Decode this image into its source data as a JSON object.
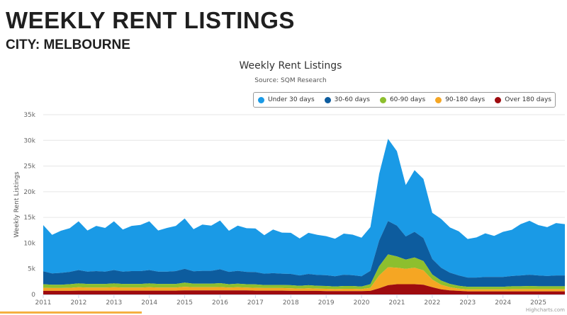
{
  "page": {
    "title": "WEEKLY RENT LISTINGS",
    "subtitle": "CITY: MELBOURNE"
  },
  "chart_data": {
    "type": "area",
    "stacked": true,
    "title": "Weekly Rent Listings",
    "subtitle": "Source: SQM Research",
    "ylabel": "Weekly Rent Listings",
    "xlabel": "",
    "ylim": [
      0,
      35000
    ],
    "y_ticks": [
      "0",
      "5k",
      "10k",
      "15k",
      "20k",
      "25k",
      "30k",
      "35k"
    ],
    "x_ticks": [
      "2011",
      "2012",
      "2013",
      "2014",
      "2015",
      "2016",
      "2017",
      "2018",
      "2019",
      "2020",
      "2021",
      "2022",
      "2023",
      "2024",
      "2025"
    ],
    "grid": true,
    "legend_position": "top-right",
    "credit": "Highcharts.com",
    "x": [
      "2011-01",
      "2011-04",
      "2011-07",
      "2011-10",
      "2012-01",
      "2012-04",
      "2012-07",
      "2012-10",
      "2013-01",
      "2013-04",
      "2013-07",
      "2013-10",
      "2014-01",
      "2014-04",
      "2014-07",
      "2014-10",
      "2015-01",
      "2015-04",
      "2015-07",
      "2015-10",
      "2016-01",
      "2016-04",
      "2016-07",
      "2016-10",
      "2017-01",
      "2017-04",
      "2017-07",
      "2017-10",
      "2018-01",
      "2018-04",
      "2018-07",
      "2018-10",
      "2019-01",
      "2019-04",
      "2019-07",
      "2019-10",
      "2020-01",
      "2020-04",
      "2020-07",
      "2020-10",
      "2021-01",
      "2021-04",
      "2021-07",
      "2021-10",
      "2022-01",
      "2022-04",
      "2022-07",
      "2022-10",
      "2023-01",
      "2023-04",
      "2023-07",
      "2023-10",
      "2024-01",
      "2024-04",
      "2024-07",
      "2024-10",
      "2025-01",
      "2025-04",
      "2025-07",
      "2025-10"
    ],
    "series": [
      {
        "name": "Under 30 days",
        "color": "#1a9ae6",
        "values": [
          9000,
          7500,
          8200,
          8500,
          9500,
          8000,
          8800,
          8500,
          9500,
          8200,
          8800,
          9000,
          9500,
          8000,
          8500,
          8800,
          9800,
          8200,
          9000,
          8800,
          9500,
          8000,
          8800,
          8500,
          8500,
          7500,
          8500,
          8000,
          8000,
          7200,
          8000,
          7800,
          7600,
          7300,
          8000,
          7900,
          7500,
          8500,
          13000,
          16000,
          14500,
          10000,
          12000,
          11500,
          9000,
          9500,
          8800,
          8600,
          7500,
          7800,
          8500,
          8000,
          8800,
          9000,
          10000,
          10500,
          9800,
          9500,
          10200,
          10000
        ]
      },
      {
        "name": "30-60 days",
        "color": "#0d5c9e",
        "values": [
          2500,
          2200,
          2300,
          2400,
          2600,
          2400,
          2500,
          2400,
          2600,
          2400,
          2500,
          2500,
          2600,
          2400,
          2400,
          2500,
          2700,
          2400,
          2500,
          2500,
          2700,
          2400,
          2500,
          2400,
          2400,
          2200,
          2300,
          2200,
          2200,
          2000,
          2200,
          2100,
          2100,
          2000,
          2200,
          2100,
          2000,
          2600,
          5000,
          6500,
          6000,
          4500,
          5000,
          4500,
          3000,
          2500,
          2200,
          2000,
          1800,
          1800,
          1900,
          1900,
          1900,
          2000,
          2100,
          2200,
          2100,
          2000,
          2100,
          2100
        ]
      },
      {
        "name": "60-90 days",
        "color": "#8dbf2e",
        "values": [
          700,
          650,
          650,
          700,
          750,
          700,
          700,
          700,
          750,
          700,
          700,
          700,
          750,
          700,
          700,
          700,
          800,
          700,
          700,
          700,
          750,
          650,
          700,
          650,
          650,
          600,
          600,
          600,
          600,
          550,
          600,
          550,
          550,
          500,
          550,
          550,
          500,
          700,
          1800,
          2500,
          2200,
          1800,
          2000,
          1800,
          1000,
          800,
          650,
          550,
          500,
          500,
          500,
          500,
          500,
          550,
          550,
          600,
          550,
          550,
          550,
          550
        ]
      },
      {
        "name": "90-180 days",
        "color": "#f5a623",
        "values": [
          600,
          550,
          550,
          600,
          650,
          600,
          600,
          600,
          650,
          600,
          600,
          600,
          650,
          600,
          600,
          600,
          700,
          600,
          600,
          600,
          650,
          550,
          600,
          550,
          550,
          500,
          500,
          500,
          500,
          450,
          500,
          450,
          450,
          400,
          450,
          450,
          400,
          600,
          2500,
          3500,
          3200,
          3000,
          3200,
          2800,
          1500,
          900,
          600,
          450,
          400,
          400,
          400,
          400,
          400,
          450,
          450,
          450,
          450,
          450,
          450,
          450
        ]
      },
      {
        "name": "Over 180 days",
        "color": "#9e0b0f",
        "values": [
          700,
          700,
          700,
          700,
          750,
          750,
          750,
          750,
          750,
          750,
          750,
          750,
          750,
          750,
          750,
          750,
          800,
          800,
          800,
          800,
          800,
          800,
          800,
          800,
          750,
          750,
          750,
          750,
          700,
          700,
          700,
          700,
          650,
          650,
          650,
          650,
          650,
          700,
          1200,
          1800,
          2000,
          2000,
          2000,
          1900,
          1400,
          1000,
          800,
          700,
          600,
          600,
          600,
          600,
          600,
          600,
          600,
          600,
          600,
          600,
          600,
          600
        ]
      }
    ]
  }
}
